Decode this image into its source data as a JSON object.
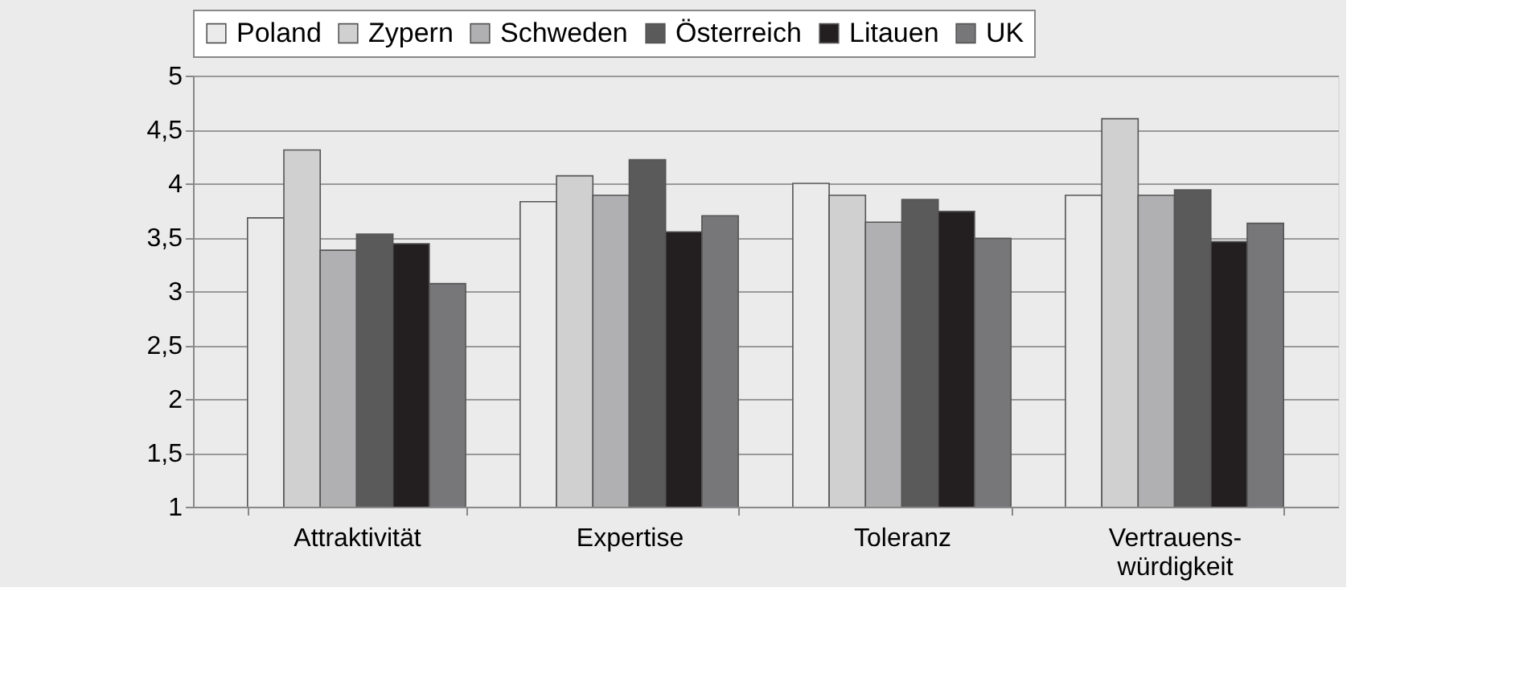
{
  "chart_data": {
    "type": "bar",
    "categories": [
      "Attraktivität",
      "Expertise",
      "Toleranz",
      "Vertrauens-\nwürdigkeit"
    ],
    "series": [
      {
        "name": "Poland",
        "color": "#ebebeb",
        "values": [
          3.68,
          3.83,
          4.0,
          3.89
        ]
      },
      {
        "name": "Zypern",
        "color": "#d0d0d0",
        "values": [
          4.31,
          4.07,
          3.89,
          4.6
        ]
      },
      {
        "name": "Schweden",
        "color": "#b0b0b2",
        "values": [
          3.38,
          3.89,
          3.64,
          3.89
        ]
      },
      {
        "name": "Österreich",
        "color": "#5a5a5a",
        "values": [
          3.53,
          4.22,
          3.85,
          3.94
        ]
      },
      {
        "name": "Litauen",
        "color": "#231f20",
        "values": [
          3.44,
          3.55,
          3.74,
          3.46
        ]
      },
      {
        "name": "UK",
        "color": "#77777a",
        "values": [
          3.07,
          3.7,
          3.49,
          3.63
        ]
      }
    ],
    "ylim": [
      1,
      5
    ],
    "yticks": [
      1,
      {
        "value": 1.5,
        "label": "1,5"
      },
      2,
      {
        "value": 2.5,
        "label": "2,5"
      },
      3,
      {
        "value": 3.5,
        "label": "3,5"
      },
      4,
      {
        "value": 4.5,
        "label": "4,5"
      },
      5
    ],
    "grid": "y",
    "legend": "top"
  }
}
